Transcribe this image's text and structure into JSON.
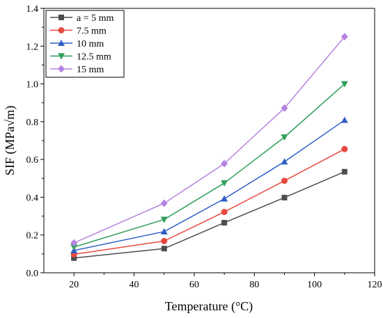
{
  "chart_data": {
    "type": "line",
    "xlabel": "Temperature (°C)",
    "ylabel": "SIF (MPa√m)",
    "xlim": [
      10,
      120
    ],
    "ylim": [
      0.0,
      1.4
    ],
    "xticks": [
      "20",
      "40",
      "60",
      "80",
      "100",
      "120"
    ],
    "yticks": [
      "0.0",
      "0.2",
      "0.4",
      "0.6",
      "0.8",
      "1.0",
      "1.2",
      "1.4"
    ],
    "x": [
      20,
      50,
      70,
      90,
      110
    ],
    "legend_position": "top-left",
    "grid": false,
    "series": [
      {
        "name": "a = 5 mm",
        "color": "#4d4d4d",
        "marker": "square",
        "values": [
          0.078,
          0.128,
          0.265,
          0.398,
          0.535
        ]
      },
      {
        "name": "7.5 mm",
        "color": "#e8493f",
        "marker": "circle",
        "values": [
          0.098,
          0.168,
          0.322,
          0.487,
          0.655
        ]
      },
      {
        "name": "10 mm",
        "color": "#2f5fc4",
        "marker": "triangle-up",
        "values": [
          0.118,
          0.218,
          0.392,
          0.588,
          0.808
        ]
      },
      {
        "name": "12.5 mm",
        "color": "#2f9e5a",
        "marker": "triangle-down",
        "values": [
          0.136,
          0.282,
          0.475,
          0.718,
          1.0
        ]
      },
      {
        "name": "15 mm",
        "color": "#b783e0",
        "marker": "diamond",
        "values": [
          0.158,
          0.368,
          0.578,
          0.872,
          1.25
        ]
      }
    ]
  }
}
